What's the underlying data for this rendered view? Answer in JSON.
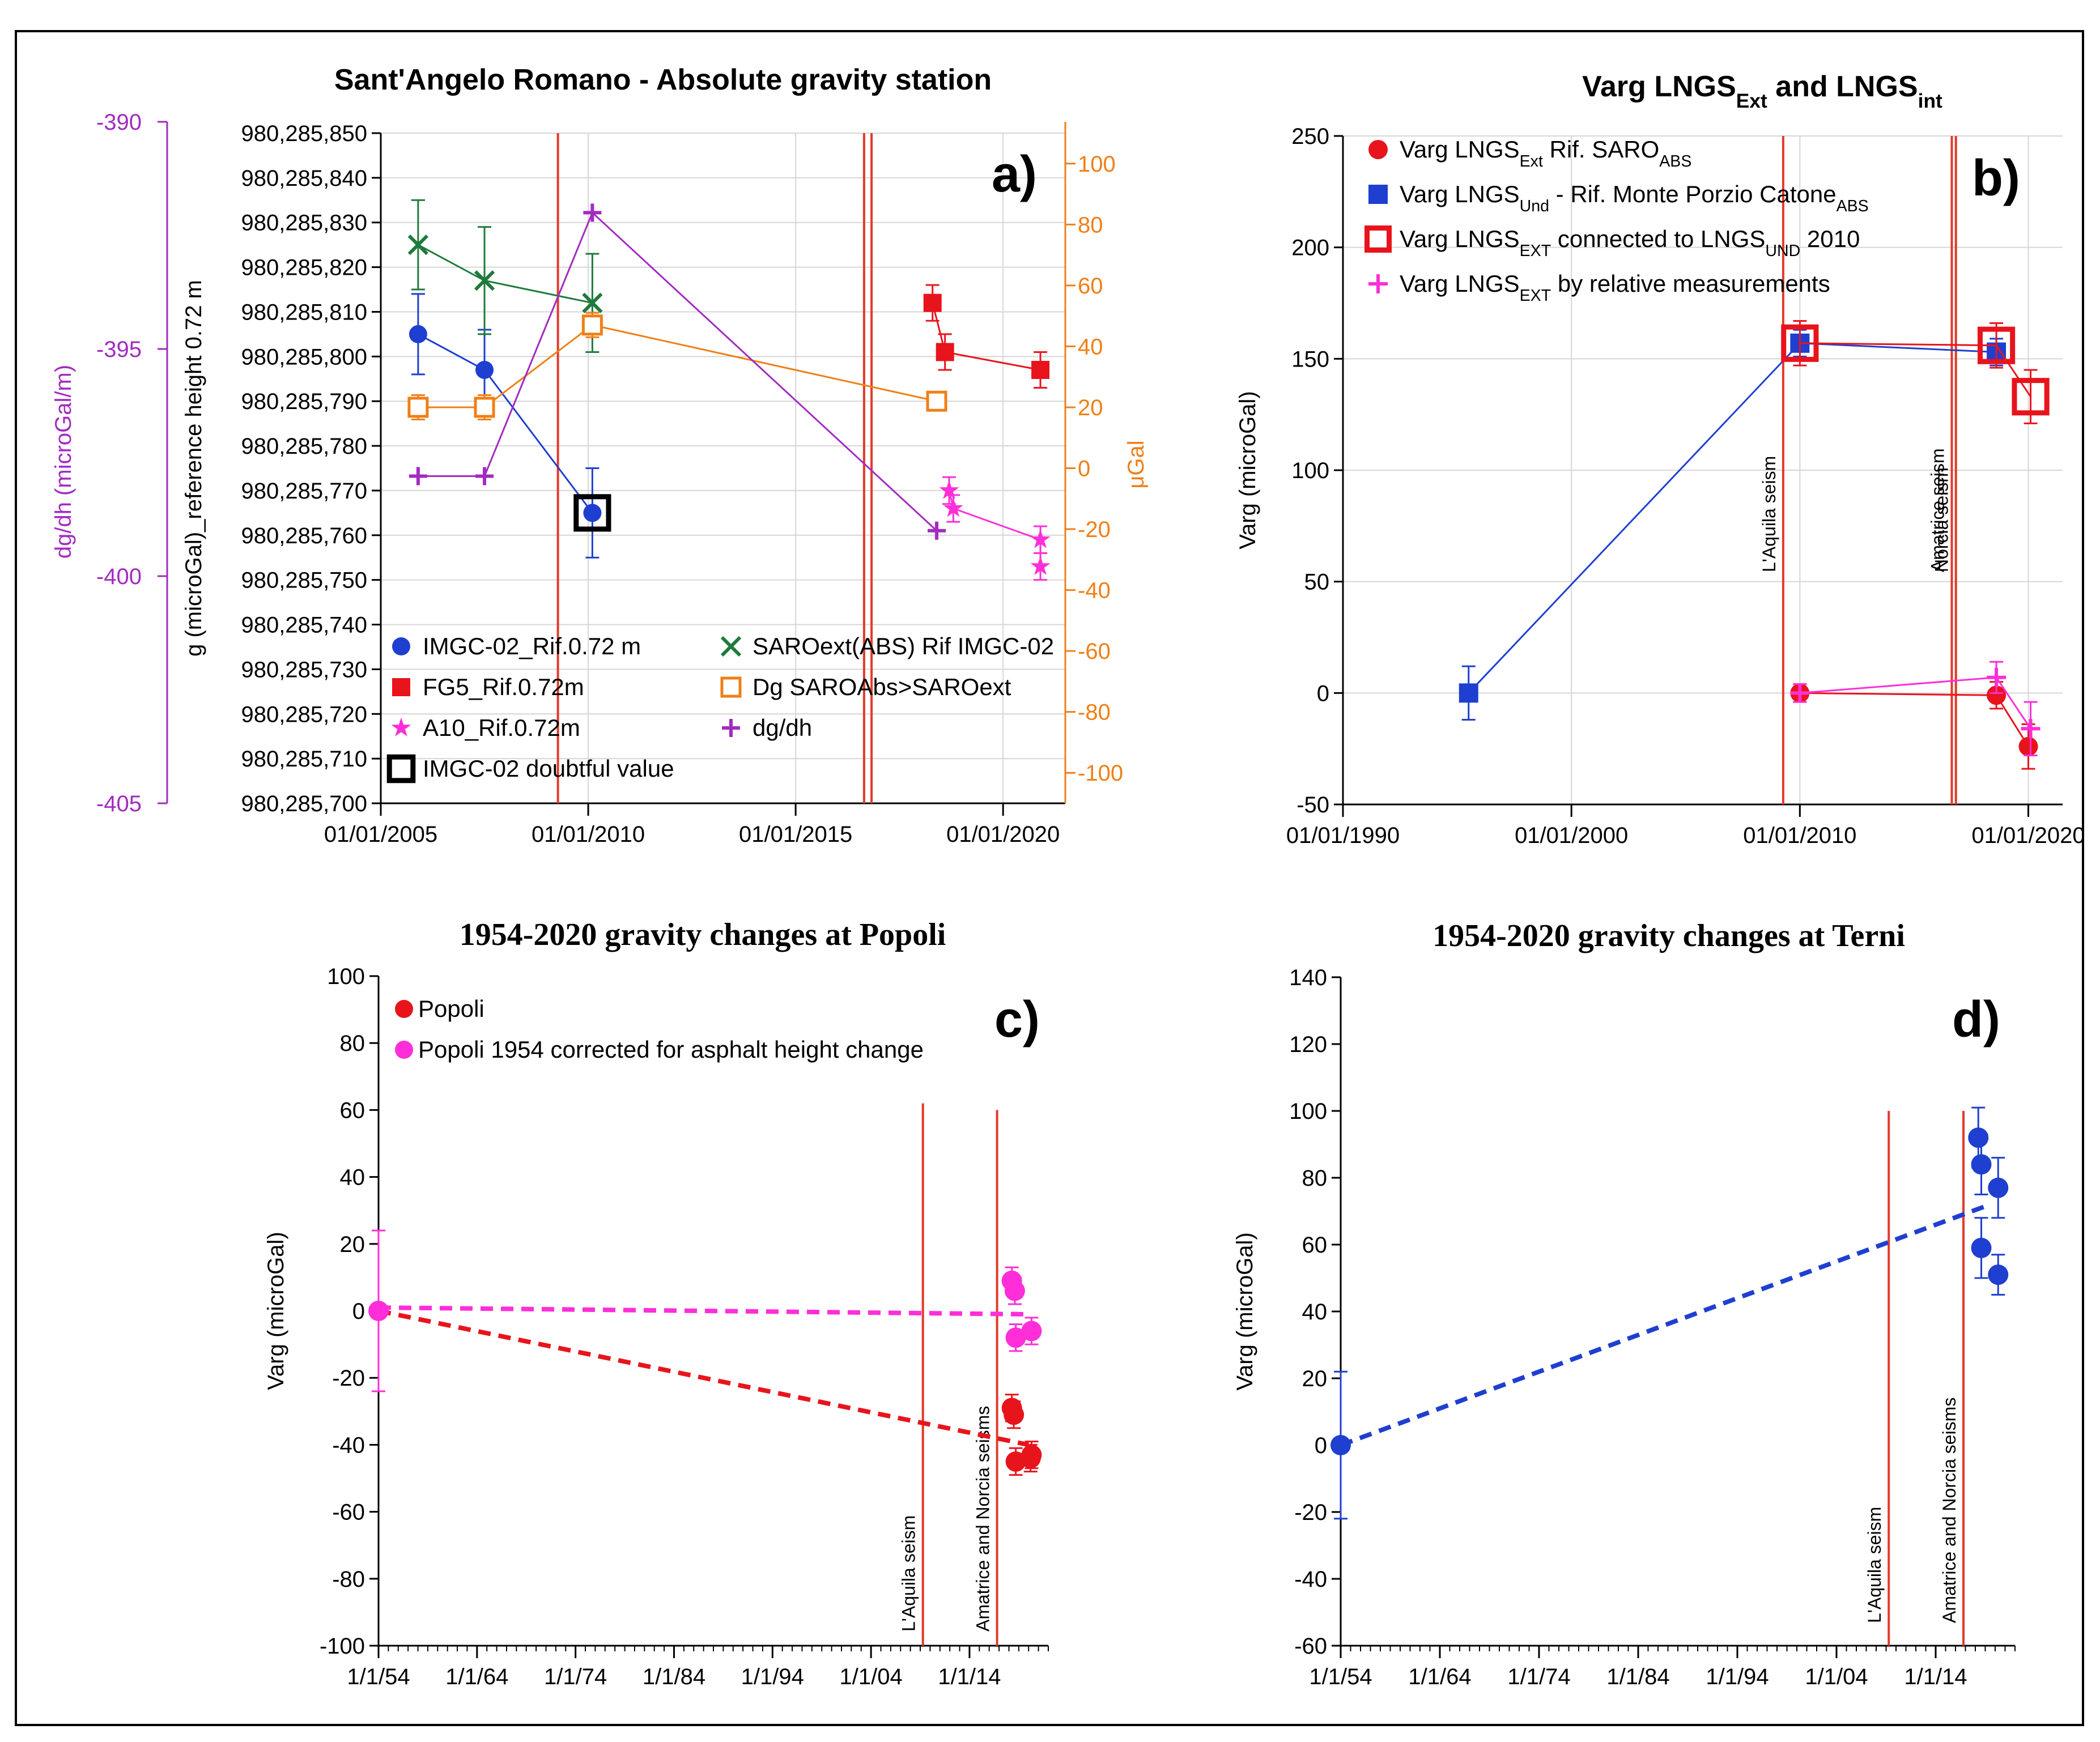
{
  "chart_data": [
    {
      "id": "a",
      "type": "line",
      "panel_label": "a)",
      "title": "Sant'Angelo Romano - Absolute gravity station",
      "ylabel": "g (microGal)_reference height 0.72 m",
      "ylabel_right": "μGal",
      "ylabel_far_left": "dg/dh (microGal/m)",
      "xlim": [
        2005.0,
        2021.5
      ],
      "ylim": [
        980285700,
        980285850
      ],
      "ylim_right": [
        -110,
        110
      ],
      "ylim_far_left": [
        -405,
        -390
      ],
      "x_ticks": [
        {
          "v": 2005,
          "label": "01/01/2005"
        },
        {
          "v": 2010,
          "label": "01/01/2010"
        },
        {
          "v": 2015,
          "label": "01/01/2015"
        },
        {
          "v": 2020,
          "label": "01/01/2020"
        }
      ],
      "y_ticks": [
        {
          "v": 980285700,
          "label": "980,285,700"
        },
        {
          "v": 980285710,
          "label": "980,285,710"
        },
        {
          "v": 980285720,
          "label": "980,285,720"
        },
        {
          "v": 980285730,
          "label": "980,285,730"
        },
        {
          "v": 980285740,
          "label": "980,285,740"
        },
        {
          "v": 980285750,
          "label": "980,285,750"
        },
        {
          "v": 980285760,
          "label": "980,285,760"
        },
        {
          "v": 980285770,
          "label": "980,285,770"
        },
        {
          "v": 980285780,
          "label": "980,285,780"
        },
        {
          "v": 980285790,
          "label": "980,285,790"
        },
        {
          "v": 980285800,
          "label": "980,285,800"
        },
        {
          "v": 980285810,
          "label": "980,285,810"
        },
        {
          "v": 980285820,
          "label": "980,285,820"
        },
        {
          "v": 980285830,
          "label": "980,285,830"
        },
        {
          "v": 980285840,
          "label": "980,285,840"
        },
        {
          "v": 980285850,
          "label": "980,285,850"
        }
      ],
      "y_ticks_right": [
        {
          "v": 100,
          "label": "100"
        },
        {
          "v": 80,
          "label": "80"
        },
        {
          "v": 60,
          "label": "60"
        },
        {
          "v": 40,
          "label": "40"
        },
        {
          "v": 20,
          "label": "20"
        },
        {
          "v": 0,
          "label": "0"
        },
        {
          "v": -20,
          "label": "-20"
        },
        {
          "v": -40,
          "label": "-40"
        },
        {
          "v": -60,
          "label": "-60"
        },
        {
          "v": -80,
          "label": "-80"
        },
        {
          "v": -100,
          "label": "-100"
        }
      ],
      "y_ticks_far_left": [
        {
          "v": -390,
          "label": "-390"
        },
        {
          "v": -395,
          "label": "-395"
        },
        {
          "v": -400,
          "label": "-400"
        },
        {
          "v": -405,
          "label": "-405"
        }
      ],
      "vlines": [
        {
          "x": 2009.27,
          "color": "#e23a2a"
        },
        {
          "x": 2016.65,
          "color": "#e23a2a"
        },
        {
          "x": 2016.83,
          "color": "#e23a2a"
        }
      ],
      "series": [
        {
          "name": "IMGC-02_Rif.0.72 m",
          "axis": "left",
          "color": "#1f3fd0",
          "marker": "circle",
          "line": true,
          "x": [
            2005.9,
            2007.5,
            2010.1
          ],
          "y": [
            980285805,
            980285797,
            980285765
          ],
          "err": [
            9,
            9,
            10
          ]
        },
        {
          "name": "FG5_Rif.0.72m",
          "axis": "left",
          "color": "#e8141c",
          "marker": "square",
          "line": true,
          "x": [
            2018.3,
            2018.6,
            2020.9
          ],
          "y": [
            980285812,
            980285801,
            980285797
          ],
          "err": [
            4,
            4,
            4
          ]
        },
        {
          "name": "A10_Rif.0.72m",
          "axis": "left",
          "color": "#ff2ed8",
          "marker": "star",
          "line": true,
          "x": [
            2018.7,
            2018.8,
            2020.9,
            2020.9
          ],
          "y": [
            980285770,
            980285766,
            980285759,
            980285753
          ],
          "err": [
            3,
            3,
            3,
            3
          ]
        },
        {
          "name": "IMGC-02 doubtful value",
          "axis": "left",
          "color": "#000000",
          "marker": "open-square-bold",
          "line": false,
          "x": [
            2010.1
          ],
          "y": [
            980285765
          ]
        },
        {
          "name": "SAROext(ABS) Rif IMGC-02",
          "axis": "left",
          "color": "#1e7a3c",
          "marker": "x",
          "line": true,
          "x": [
            2005.9,
            2007.5,
            2010.1
          ],
          "y": [
            980285825,
            980285817,
            980285812
          ],
          "err": [
            10,
            12,
            11
          ]
        },
        {
          "name": "Dg SAROAbs>SAROext",
          "axis": "right",
          "color": "#f07f16",
          "marker": "open-square",
          "line": true,
          "x": [
            2005.9,
            2007.5,
            2010.1,
            2018.4
          ],
          "y": [
            20,
            20,
            47,
            22
          ],
          "err": [
            4,
            4,
            4,
            3
          ]
        },
        {
          "name": "dg/dh",
          "axis": "far_left",
          "color": "#a22bc0",
          "marker": "plus",
          "line": true,
          "x": [
            2005.9,
            2007.5,
            2010.1,
            2018.4
          ],
          "y": [
            -397.8,
            -397.8,
            -392.0,
            -399.0
          ],
          "err": [
            0,
            0,
            0,
            0
          ]
        }
      ],
      "legend": [
        {
          "name": "IMGC-02_Rif.0.72 m",
          "color": "#1f3fd0",
          "marker": "circle"
        },
        {
          "name": "SAROext(ABS) Rif IMGC-02",
          "color": "#1e7a3c",
          "marker": "x"
        },
        {
          "name": "FG5_Rif.0.72m",
          "color": "#e8141c",
          "marker": "square"
        },
        {
          "name": "Dg SAROAbs>SAROext",
          "color": "#f07f16",
          "marker": "open-square"
        },
        {
          "name": "A10_Rif.0.72m",
          "color": "#ff2ed8",
          "marker": "star"
        },
        {
          "name": "dg/dh",
          "color": "#a22bc0",
          "marker": "plus"
        },
        {
          "name": "IMGC-02 doubtful value",
          "color": "#000000",
          "marker": "open-square-bold"
        }
      ]
    },
    {
      "id": "b",
      "type": "line",
      "panel_label": "b)",
      "title": {
        "p1": "Varg LNGS",
        "s1": "Ext",
        "p2": " and LNGS",
        "s2": "int"
      },
      "ylabel": "Varg (microGal)",
      "xlim": [
        1990.0,
        2021.5
      ],
      "ylim": [
        -50,
        250
      ],
      "x_ticks": [
        {
          "v": 1990,
          "label": "01/01/1990"
        },
        {
          "v": 2000,
          "label": "01/01/2000"
        },
        {
          "v": 2010,
          "label": "01/01/2010"
        },
        {
          "v": 2020,
          "label": "01/01/2020"
        }
      ],
      "y_ticks": [
        {
          "v": -50,
          "label": "-50"
        },
        {
          "v": 0,
          "label": "0"
        },
        {
          "v": 50,
          "label": "50"
        },
        {
          "v": 100,
          "label": "100"
        },
        {
          "v": 150,
          "label": "150"
        },
        {
          "v": 200,
          "label": "200"
        },
        {
          "v": 250,
          "label": "250"
        }
      ],
      "vlines": [
        {
          "x": 2009.27,
          "color": "#e23a2a",
          "label": "L'Aquila seism"
        },
        {
          "x": 2016.65,
          "color": "#e23a2a",
          "label": "Amatrice seism"
        },
        {
          "x": 2016.83,
          "color": "#e23a2a",
          "label": "Norcia seism"
        }
      ],
      "series": [
        {
          "name": "Varg LNGS Ext Rif. SARO ABS",
          "color": "#e8141c",
          "marker": "circle",
          "line": true,
          "x": [
            2010.0,
            2018.6,
            2020.0
          ],
          "y": [
            0,
            -1,
            -24
          ],
          "err": [
            4,
            6,
            10
          ]
        },
        {
          "name": "Varg LNGS Und - Rif. Monte Porzio Catone ABS",
          "color": "#1f3fd0",
          "marker": "square",
          "line": true,
          "x": [
            1995.5,
            2010.0,
            2018.6
          ],
          "y": [
            0,
            157,
            153
          ],
          "err": [
            12,
            6,
            6
          ]
        },
        {
          "name": "Varg LNGS EXT connected to LNGS UND 2010",
          "color": "#e8141c",
          "marker": "open-square-bold",
          "line": true,
          "x": [
            2010.0,
            2018.6,
            2020.1
          ],
          "y": [
            157,
            156,
            133
          ],
          "err": [
            10,
            10,
            12
          ]
        },
        {
          "name": "Varg LNGS EXT by relative measurements",
          "color": "#ff2ed8",
          "marker": "plus",
          "line": true,
          "x": [
            2010.0,
            2018.6,
            2020.1
          ],
          "y": [
            0,
            7,
            -16
          ],
          "err": [
            4,
            7,
            12
          ]
        }
      ],
      "legend": [
        {
          "p1": "Varg LNGS",
          "s1": "Ext",
          "p2": " Rif. SARO",
          "s2": "ABS",
          "p3": "",
          "color": "#e8141c",
          "marker": "circle"
        },
        {
          "p1": "Varg LNGS",
          "s1": "Und",
          "p2": " - Rif. Monte Porzio Catone",
          "s2": "ABS",
          "p3": "",
          "color": "#1f3fd0",
          "marker": "square"
        },
        {
          "p1": "Varg LNGS",
          "s1": "EXT",
          "p2": " connected to LNGS",
          "s2": "UND",
          "p3": " 2010",
          "color": "#e8141c",
          "marker": "open-square-bold"
        },
        {
          "p1": "Varg LNGS",
          "s1": "EXT",
          "p2": " by relative measurements",
          "s2": "",
          "p3": "",
          "color": "#ff2ed8",
          "marker": "plus"
        }
      ]
    },
    {
      "id": "c",
      "type": "scatter",
      "panel_label": "c)",
      "title": "1954-2020 gravity changes at Popoli",
      "ylabel": "Varg (microGal)",
      "xlim": [
        1954.0,
        2022.0
      ],
      "ylim": [
        -100,
        100
      ],
      "x_ticks": [
        {
          "v": 1954,
          "label": "1/1/54"
        },
        {
          "v": 1964,
          "label": "1/1/64"
        },
        {
          "v": 1974,
          "label": "1/1/74"
        },
        {
          "v": 1984,
          "label": "1/1/84"
        },
        {
          "v": 1994,
          "label": "1/1/94"
        },
        {
          "v": 2004,
          "label": "1/1/04"
        },
        {
          "v": 2014,
          "label": "1/1/14"
        }
      ],
      "y_ticks": [
        {
          "v": -100,
          "label": "-100"
        },
        {
          "v": -80,
          "label": "-80"
        },
        {
          "v": -60,
          "label": "-60"
        },
        {
          "v": -40,
          "label": "-40"
        },
        {
          "v": -20,
          "label": "-20"
        },
        {
          "v": 0,
          "label": "0"
        },
        {
          "v": 20,
          "label": "20"
        },
        {
          "v": 40,
          "label": "40"
        },
        {
          "v": 60,
          "label": "60"
        },
        {
          "v": 80,
          "label": "80"
        },
        {
          "v": 100,
          "label": "100"
        }
      ],
      "minor_x_step": 1,
      "vlines": [
        {
          "x": 2009.27,
          "color": "#e23a2a",
          "label": "L'Aquila seism",
          "top": 62
        },
        {
          "x": 2016.8,
          "color": "#e23a2a",
          "label": "Amatrice and Norcia seisms",
          "top": 60
        }
      ],
      "trendlines": [
        {
          "color": "#e8141c",
          "x": [
            1954,
            2020
          ],
          "y": [
            0,
            -40
          ]
        },
        {
          "color": "#ff2ed8",
          "x": [
            1954,
            2020
          ],
          "y": [
            1,
            -1
          ]
        }
      ],
      "series": [
        {
          "name": "Popoli",
          "color": "#e8141c",
          "marker": "circle",
          "line": false,
          "x": [
            2018.3,
            2018.5,
            2018.7,
            2020.2,
            2020.3
          ],
          "y": [
            -29,
            -31,
            -45,
            -44,
            -43
          ],
          "err": [
            4,
            4,
            4,
            4,
            4
          ]
        },
        {
          "name": "Popoli 1954 corrected for asphalt height change",
          "color": "#ff2ed8",
          "marker": "circle",
          "line": false,
          "x": [
            1954.0,
            2018.3,
            2018.6,
            2018.7,
            2020.3
          ],
          "y": [
            0,
            9,
            6,
            -8,
            -6
          ],
          "err": [
            24,
            4,
            4,
            4,
            4
          ]
        }
      ],
      "legend": [
        {
          "name": "Popoli",
          "color": "#e8141c",
          "marker": "circle"
        },
        {
          "name": "Popoli 1954 corrected for asphalt height change",
          "color": "#ff2ed8",
          "marker": "circle"
        }
      ]
    },
    {
      "id": "d",
      "type": "scatter",
      "panel_label": "d)",
      "title": "1954-2020 gravity changes at Terni",
      "ylabel": "Varg (microGal)",
      "xlim": [
        1954.0,
        2022.0
      ],
      "ylim": [
        -60,
        140
      ],
      "x_ticks": [
        {
          "v": 1954,
          "label": "1/1/54"
        },
        {
          "v": 1964,
          "label": "1/1/64"
        },
        {
          "v": 1974,
          "label": "1/1/74"
        },
        {
          "v": 1984,
          "label": "1/1/84"
        },
        {
          "v": 1994,
          "label": "1/1/94"
        },
        {
          "v": 2004,
          "label": "1/1/04"
        },
        {
          "v": 2014,
          "label": "1/1/14"
        }
      ],
      "y_ticks": [
        {
          "v": -60,
          "label": "-60"
        },
        {
          "v": -40,
          "label": "-40"
        },
        {
          "v": -20,
          "label": "-20"
        },
        {
          "v": 0,
          "label": "0"
        },
        {
          "v": 20,
          "label": "20"
        },
        {
          "v": 40,
          "label": "40"
        },
        {
          "v": 60,
          "label": "60"
        },
        {
          "v": 80,
          "label": "80"
        },
        {
          "v": 100,
          "label": "100"
        },
        {
          "v": 120,
          "label": "120"
        },
        {
          "v": 140,
          "label": "140"
        }
      ],
      "minor_x_step": 1,
      "vlines": [
        {
          "x": 2009.27,
          "color": "#e23a2a",
          "label": "L'Aquila seism",
          "top": 100
        },
        {
          "x": 2016.8,
          "color": "#e23a2a",
          "label": "Amatrice and Norcia seisms",
          "top": 100
        }
      ],
      "trendlines": [
        {
          "color": "#1f3fd0",
          "x": [
            1954,
            2019.5
          ],
          "y": [
            0,
            72
          ]
        }
      ],
      "series": [
        {
          "name": "Terni",
          "color": "#1f3fd0",
          "marker": "circle",
          "line": false,
          "x": [
            1954.0,
            2018.3,
            2018.6,
            2018.6,
            2020.3,
            2020.3
          ],
          "y": [
            0,
            92,
            84,
            59,
            77,
            51
          ],
          "err": [
            22,
            9,
            9,
            9,
            9,
            6
          ]
        }
      ],
      "legend": []
    }
  ]
}
